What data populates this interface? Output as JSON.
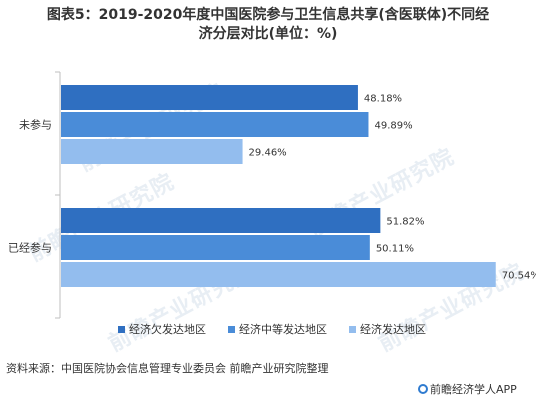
{
  "title_line1": "图表5：2019-2020年度中国医院参与卫生信息共享(含医联体)不同经",
  "title_line2": "济分层对比(单位：%)",
  "watermark_text": "前瞻产业研究院",
  "source": "资料来源：中国医院协会信息管理专业委员会 前瞻产业研究院整理",
  "brand": "前瞻经济学人APP",
  "colors": {
    "underdeveloped": "#2f6fc1",
    "medium": "#4a8cd8",
    "developed": "#93bdee",
    "axis": "#bfbfbf"
  },
  "chart_data": {
    "type": "bar",
    "orientation": "horizontal",
    "categories": [
      "未参与",
      "已经参与"
    ],
    "series": [
      {
        "name": "经济欠发达地区",
        "values": [
          48.18,
          51.82
        ],
        "labels": [
          "48.18%",
          "51.82%"
        ]
      },
      {
        "name": "经济中等发达地区",
        "values": [
          49.89,
          50.11
        ],
        "labels": [
          "49.89%",
          "50.11%"
        ]
      },
      {
        "name": "经济发达地区",
        "values": [
          29.46,
          70.54
        ],
        "labels": [
          "29.46%",
          "70.54%"
        ]
      }
    ],
    "legend_position": "bottom",
    "grid": false
  }
}
